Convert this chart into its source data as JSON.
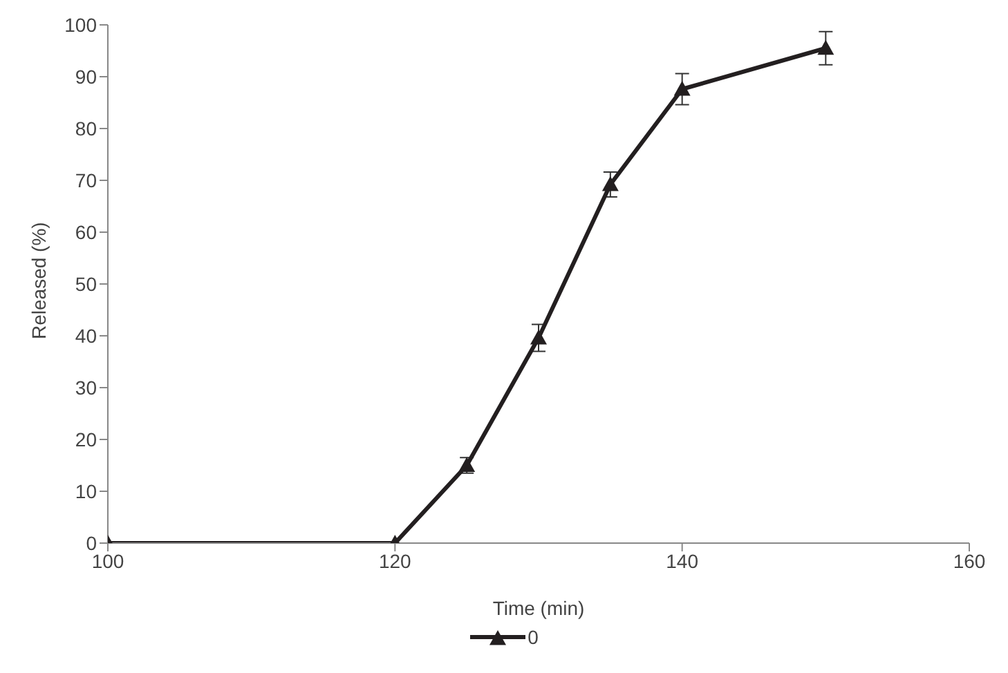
{
  "chart_data": {
    "type": "line",
    "xlabel": "Time (min)",
    "ylabel": "Released (%)",
    "x": [
      100,
      120,
      125,
      130,
      135,
      140,
      150
    ],
    "series": [
      {
        "name": "0",
        "color": "#231f20",
        "values": [
          0,
          0,
          15,
          39.6,
          69.2,
          87.6,
          95.5
        ],
        "errors": [
          null,
          null,
          1.5,
          2.6,
          2.4,
          3,
          3.2
        ]
      }
    ],
    "xlim": [
      100,
      160
    ],
    "xticks": [
      100,
      120,
      140,
      160
    ],
    "ylim": [
      0,
      100
    ],
    "yticks": [
      0,
      10,
      20,
      30,
      40,
      50,
      60,
      70,
      80,
      90,
      100
    ],
    "grid": false,
    "legend": "bottom",
    "marker": "triangle",
    "line_style": "solid"
  }
}
